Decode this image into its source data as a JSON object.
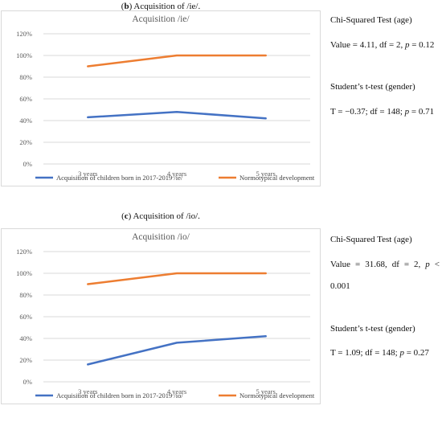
{
  "charts": [
    {
      "caption_letter": "b",
      "caption_text": ") Acquisition of /ie/.",
      "stats": {
        "test1_title": "Chi-Squared Test (age)",
        "test1_value": "Value = 4.11, df = 2, ",
        "test1_p_symbol": "p",
        "test1_p_value": " = 0.12",
        "test2_title": "Student’s t-test (gender)",
        "test2_value": "T = −0.37; df = 148; ",
        "test2_p_symbol": "p",
        "test2_p_value": " = 0.71"
      }
    },
    {
      "caption_letter": "c",
      "caption_text": ") Acquisition of /io/.",
      "stats": {
        "test1_title": "Chi-Squared Test (age)",
        "test1_value_line1_a": "Value = 31.68, df = 2, ",
        "test1_p_symbol": "p",
        "test1_value_line1_b": " <",
        "test1_value_line2": "0.001",
        "test2_title": "Student’s t-test (gender)",
        "test2_value": "T = 1.09; df = 148; ",
        "test2_p_symbol": "p",
        "test2_p_value": " = 0.27"
      }
    }
  ],
  "colors": {
    "series1": "#4472C4",
    "series2": "#ED7D31",
    "grid": "#d9d9d9",
    "text": "#595959"
  },
  "chart_data": [
    {
      "type": "line",
      "title": "Acquisition /ie/",
      "categories": [
        "3 years",
        "4 years",
        "5 years"
      ],
      "y_ticks": [
        "0%",
        "20%",
        "40%",
        "60%",
        "80%",
        "100%",
        "120%"
      ],
      "ylim": [
        0,
        120
      ],
      "grid": true,
      "legend_position": "bottom",
      "series": [
        {
          "name": "Acquisition of children born in 2017-2019 /ie/",
          "values": [
            43,
            48,
            42
          ]
        },
        {
          "name": "Normotypical development",
          "values": [
            90,
            100,
            100
          ]
        }
      ]
    },
    {
      "type": "line",
      "title": "Acquisition /io/",
      "categories": [
        "3 years",
        "4 years",
        "5 years"
      ],
      "y_ticks": [
        "0%",
        "20%",
        "40%",
        "60%",
        "80%",
        "100%",
        "120%"
      ],
      "ylim": [
        0,
        120
      ],
      "grid": true,
      "legend_position": "bottom",
      "series": [
        {
          "name": "Acquisition of children born in 2017-2019 /io/",
          "values": [
            16,
            36,
            42
          ]
        },
        {
          "name": "Normotypical development",
          "values": [
            90,
            100,
            100
          ]
        }
      ]
    }
  ]
}
